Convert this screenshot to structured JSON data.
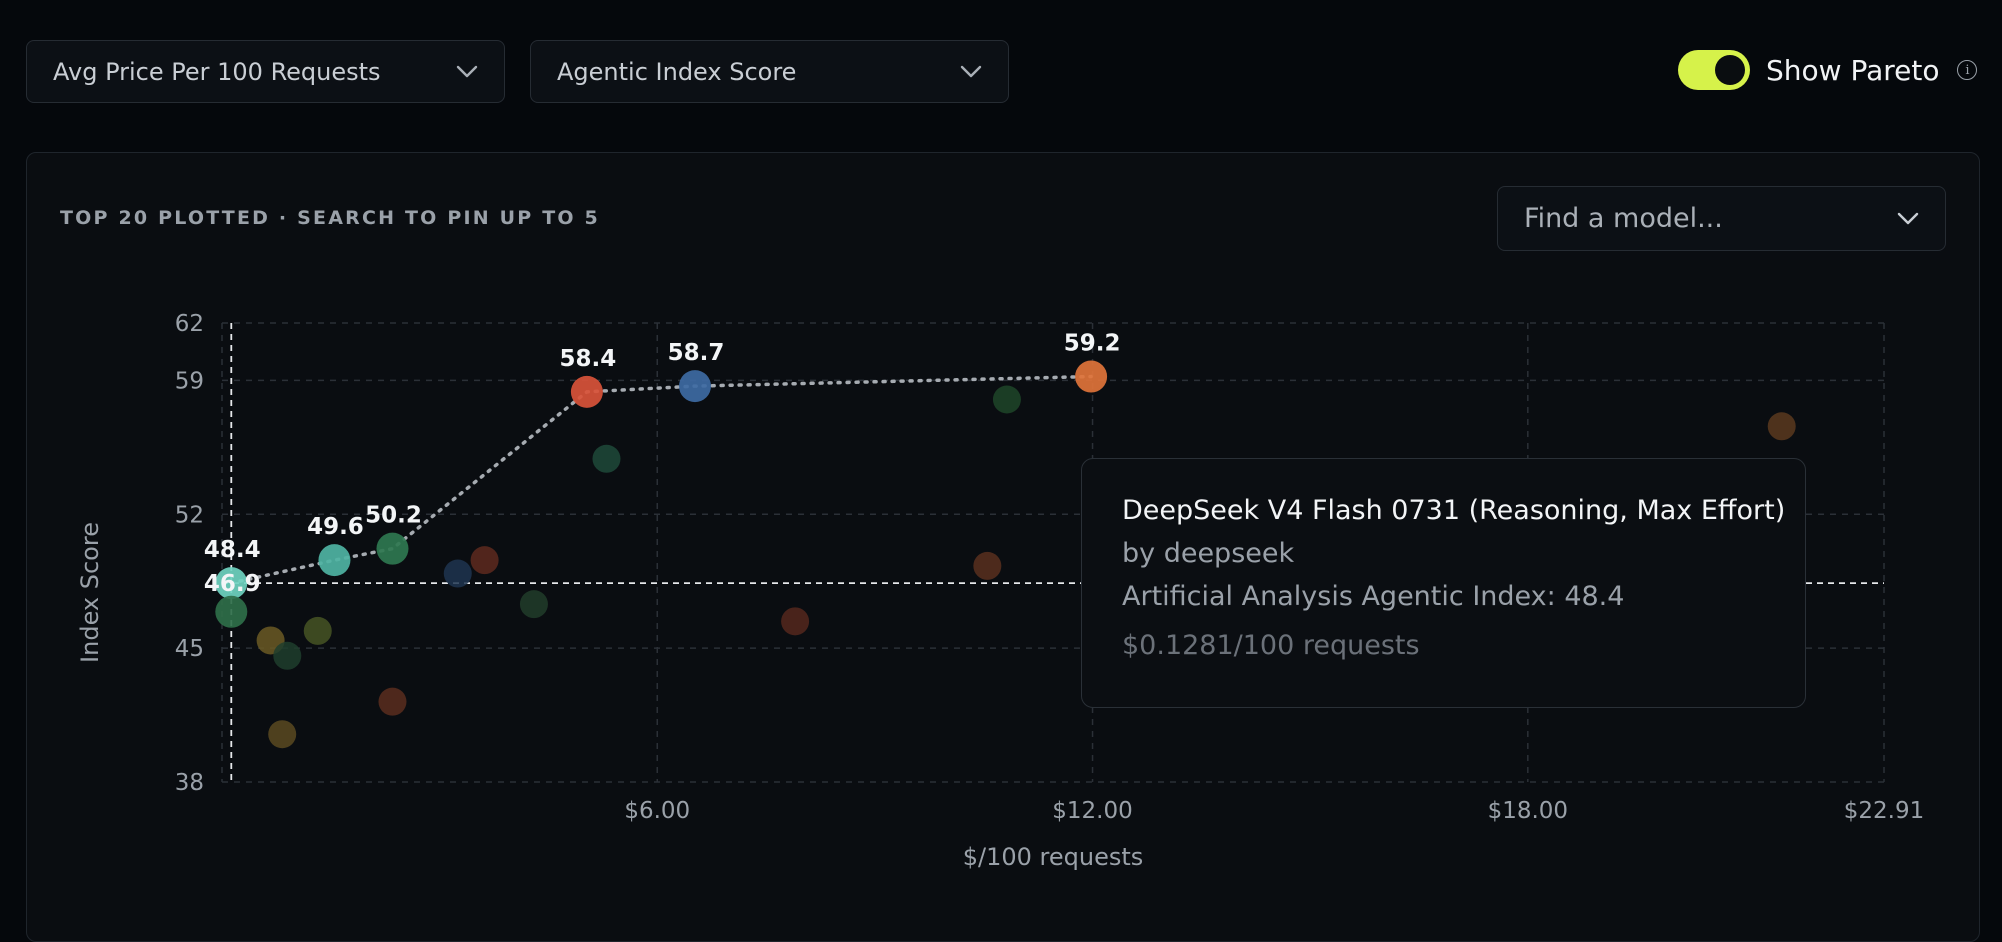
{
  "controls": {
    "x_metric": "Avg Price Per 100 Requests",
    "y_metric": "Agentic Index Score",
    "pareto_label": "Show Pareto",
    "pareto_on": true,
    "toggle_color": "#d6f24a"
  },
  "panel": {
    "title": "TOP 20 PLOTTED · SEARCH TO PIN UP TO 5",
    "search_placeholder": "Find a model..."
  },
  "tooltip": {
    "model": "DeepSeek V4 Flash 0731 (Reasoning, Max Effort)",
    "by": "by deepseek",
    "index_line": "Artificial Analysis Agentic Index: 48.4",
    "price_line": "$0.1281/100 requests"
  },
  "chart_data": {
    "type": "scatter",
    "xlabel": "$/100 requests",
    "ylabel": "Index Score",
    "xlim": [
      0,
      22.91
    ],
    "ylim": [
      38,
      62
    ],
    "x_ticks": [
      6,
      12,
      18,
      22.91
    ],
    "x_tick_labels": [
      "$6.00",
      "$12.00",
      "$18.00",
      "$22.91"
    ],
    "y_ticks": [
      38,
      45,
      52,
      59,
      62
    ],
    "y_tick_labels": [
      "38",
      "45",
      "52",
      "59",
      "62"
    ],
    "grid": true,
    "crosshair": {
      "x": 0.1281,
      "y": 48.4
    },
    "points": [
      {
        "x": 0.1281,
        "y": 48.4,
        "label": "48.4",
        "color": "#6fd3c0",
        "pareto": true,
        "highlight": true
      },
      {
        "x": 0.1281,
        "y": 46.9,
        "label": "46.9",
        "color": "#2f6e49",
        "pareto": false,
        "highlight": true
      },
      {
        "x": 1.55,
        "y": 49.6,
        "label": "49.6",
        "color": "#4fb3a3",
        "pareto": true,
        "highlight": true
      },
      {
        "x": 2.35,
        "y": 50.2,
        "label": "50.2",
        "color": "#2f7750",
        "pareto": true,
        "highlight": true
      },
      {
        "x": 5.03,
        "y": 58.4,
        "label": "58.4",
        "color": "#d9533a",
        "pareto": true,
        "highlight": true
      },
      {
        "x": 6.52,
        "y": 58.7,
        "label": "58.7",
        "color": "#3e6aa3",
        "pareto": true,
        "highlight": true
      },
      {
        "x": 11.98,
        "y": 59.2,
        "label": "59.2",
        "color": "#e0733a",
        "pareto": true,
        "highlight": true
      },
      {
        "x": 0.67,
        "y": 45.4,
        "color": "#6b5a24",
        "highlight": false
      },
      {
        "x": 0.9,
        "y": 44.6,
        "color": "#1f3e2d",
        "highlight": false
      },
      {
        "x": 1.32,
        "y": 45.9,
        "color": "#465525",
        "highlight": false
      },
      {
        "x": 0.83,
        "y": 40.5,
        "color": "#5b4a21",
        "highlight": false
      },
      {
        "x": 2.35,
        "y": 42.2,
        "color": "#5a2e1f",
        "highlight": false
      },
      {
        "x": 3.25,
        "y": 48.9,
        "color": "#1f3550",
        "highlight": false
      },
      {
        "x": 3.62,
        "y": 49.6,
        "color": "#5e2a1f",
        "highlight": false
      },
      {
        "x": 4.3,
        "y": 47.3,
        "color": "#213d2a",
        "highlight": false
      },
      {
        "x": 5.3,
        "y": 54.9,
        "color": "#1e4a3a",
        "highlight": false
      },
      {
        "x": 7.9,
        "y": 46.4,
        "color": "#55281d",
        "highlight": false
      },
      {
        "x": 10.55,
        "y": 49.3,
        "color": "#59301f",
        "highlight": false
      },
      {
        "x": 10.82,
        "y": 58.0,
        "color": "#1e4629",
        "highlight": false
      },
      {
        "x": 21.5,
        "y": 56.6,
        "color": "#5a3a1f",
        "highlight": false
      }
    ],
    "pareto_line_color": "#a6abb1"
  }
}
